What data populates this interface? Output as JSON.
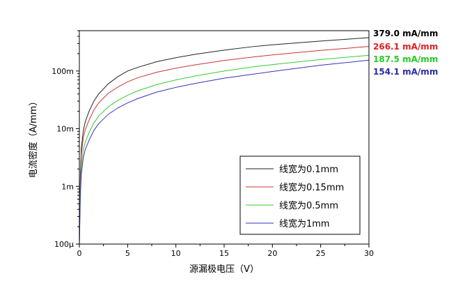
{
  "chart_data": {
    "type": "line",
    "xlabel": "源漏极电压（V）",
    "ylabel": "电流密度（A/mm）",
    "xlim": [
      0,
      30
    ],
    "ylim": [
      0.0001,
      0.5
    ],
    "yscale": "log",
    "grid": false,
    "legend_position": "bottom-right",
    "x_ticks": [
      {
        "value": 0,
        "label": "0"
      },
      {
        "value": 5,
        "label": "5"
      },
      {
        "value": 10,
        "label": "10"
      },
      {
        "value": 15,
        "label": "15"
      },
      {
        "value": 20,
        "label": "20"
      },
      {
        "value": 25,
        "label": "25"
      },
      {
        "value": 30,
        "label": "30"
      }
    ],
    "y_ticks": [
      {
        "value": 0.0001,
        "label": "100μ"
      },
      {
        "value": 0.001,
        "label": "1m"
      },
      {
        "value": 0.01,
        "label": "10m"
      },
      {
        "value": 0.1,
        "label": "100m"
      }
    ],
    "series": [
      {
        "name": "线宽为0.1mm",
        "color": "#222222",
        "end_label": "379.0 mA/mm",
        "end_label_color": "#000000",
        "x": [
          0,
          0.1,
          0.2,
          0.4,
          0.6,
          1,
          1.5,
          2,
          3,
          4,
          5,
          6,
          8,
          10,
          12,
          15,
          18,
          20,
          25,
          30
        ],
        "y": [
          0.0001,
          0.0015,
          0.0045,
          0.009,
          0.013,
          0.02,
          0.03,
          0.04,
          0.06,
          0.08,
          0.1,
          0.115,
          0.145,
          0.17,
          0.195,
          0.23,
          0.265,
          0.285,
          0.33,
          0.379
        ]
      },
      {
        "name": "线宽为0.15mm",
        "color": "#cc3333",
        "end_label": "266.1 mA/mm",
        "end_label_color": "#e02020",
        "x": [
          0,
          0.1,
          0.2,
          0.4,
          0.6,
          1,
          1.5,
          2,
          3,
          4,
          5,
          6,
          8,
          10,
          12,
          15,
          18,
          20,
          25,
          30
        ],
        "y": [
          0.0001,
          0.0012,
          0.0035,
          0.0068,
          0.0095,
          0.014,
          0.021,
          0.028,
          0.041,
          0.053,
          0.065,
          0.076,
          0.095,
          0.112,
          0.128,
          0.152,
          0.175,
          0.19,
          0.228,
          0.2661
        ]
      },
      {
        "name": "线宽为0.5mm",
        "color": "#33cc33",
        "end_label": "187.5 mA/mm",
        "end_label_color": "#22cc22",
        "x": [
          0,
          0.1,
          0.2,
          0.4,
          0.6,
          1,
          1.5,
          2,
          3,
          4,
          5,
          6,
          8,
          10,
          12,
          15,
          18,
          20,
          25,
          30
        ],
        "y": [
          0.0001,
          0.00085,
          0.0022,
          0.0042,
          0.0058,
          0.0085,
          0.0125,
          0.0165,
          0.024,
          0.031,
          0.038,
          0.045,
          0.058,
          0.07,
          0.082,
          0.1,
          0.118,
          0.129,
          0.158,
          0.1875
        ]
      },
      {
        "name": "线宽为1mm",
        "color": "#3333bb",
        "end_label": "154.1 mA/mm",
        "end_label_color": "#2a2aa8",
        "x": [
          0,
          0.1,
          0.2,
          0.4,
          0.6,
          1,
          1.5,
          2,
          3,
          4,
          5,
          6,
          8,
          10,
          12,
          15,
          18,
          20,
          25,
          30
        ],
        "y": [
          0.0001,
          0.00065,
          0.0016,
          0.0031,
          0.0043,
          0.0063,
          0.0093,
          0.0122,
          0.0178,
          0.023,
          0.028,
          0.033,
          0.043,
          0.052,
          0.061,
          0.075,
          0.088,
          0.098,
          0.126,
          0.1541
        ]
      }
    ]
  }
}
